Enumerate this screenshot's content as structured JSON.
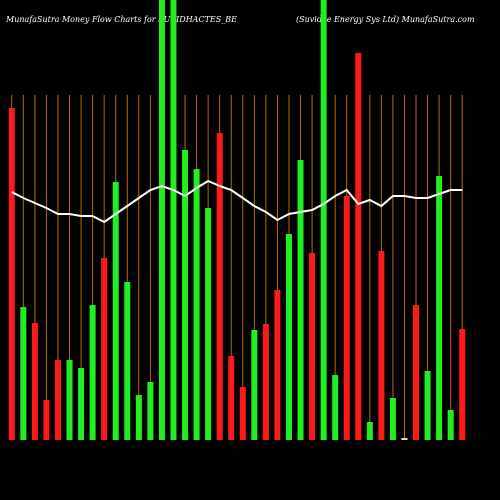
{
  "chart_data": {
    "type": "bar",
    "title": "MunafaSutra  Money Flow  Charts for SUVIDHACTES_BE",
    "subtitle": "(Suvidee Energy Sys Ltd) MunafaSutra.com",
    "ylim": [
      0,
      440
    ],
    "values": [
      332,
      133,
      117,
      40,
      80,
      80,
      72,
      135,
      182,
      258,
      158,
      45,
      58,
      440,
      440,
      290,
      271,
      232,
      307,
      84,
      53,
      110,
      116,
      150,
      206,
      280,
      187,
      440,
      65,
      244,
      387,
      18,
      189,
      42,
      2,
      135,
      69,
      264,
      30,
      111
    ],
    "colors": [
      "#ff1a1a",
      "#22ee22",
      "#ff1a1a",
      "#ff1a1a",
      "#ff1a1a",
      "#22ee22",
      "#22ee22",
      "#22ee22",
      "#ff1a1a",
      "#22ee22",
      "#22ee22",
      "#22ee22",
      "#22ee22",
      "#22ee22",
      "#22ee22",
      "#22ee22",
      "#22ee22",
      "#22ee22",
      "#ff1a1a",
      "#ff1a1a",
      "#ff1a1a",
      "#22ee22",
      "#ff1a1a",
      "#ff1a1a",
      "#22ee22",
      "#22ee22",
      "#ff1a1a",
      "#22ee22",
      "#22ee22",
      "#ff1a1a",
      "#ff1a1a",
      "#22ee22",
      "#ff1a1a",
      "#22ee22",
      "#dddddd",
      "#ff1a1a",
      "#22ee22",
      "#22ee22",
      "#22ee22",
      "#ff1a1a"
    ],
    "line": {
      "color": "#ffffff",
      "values": [
        248,
        242,
        237,
        232,
        226,
        226,
        224,
        224,
        218,
        226,
        234,
        242,
        250,
        254,
        250,
        244,
        252,
        259,
        254,
        250,
        242,
        234,
        228,
        220,
        226,
        228,
        230,
        236,
        244,
        250,
        236,
        240,
        234,
        244,
        244,
        242,
        242,
        246,
        250,
        250
      ]
    }
  }
}
